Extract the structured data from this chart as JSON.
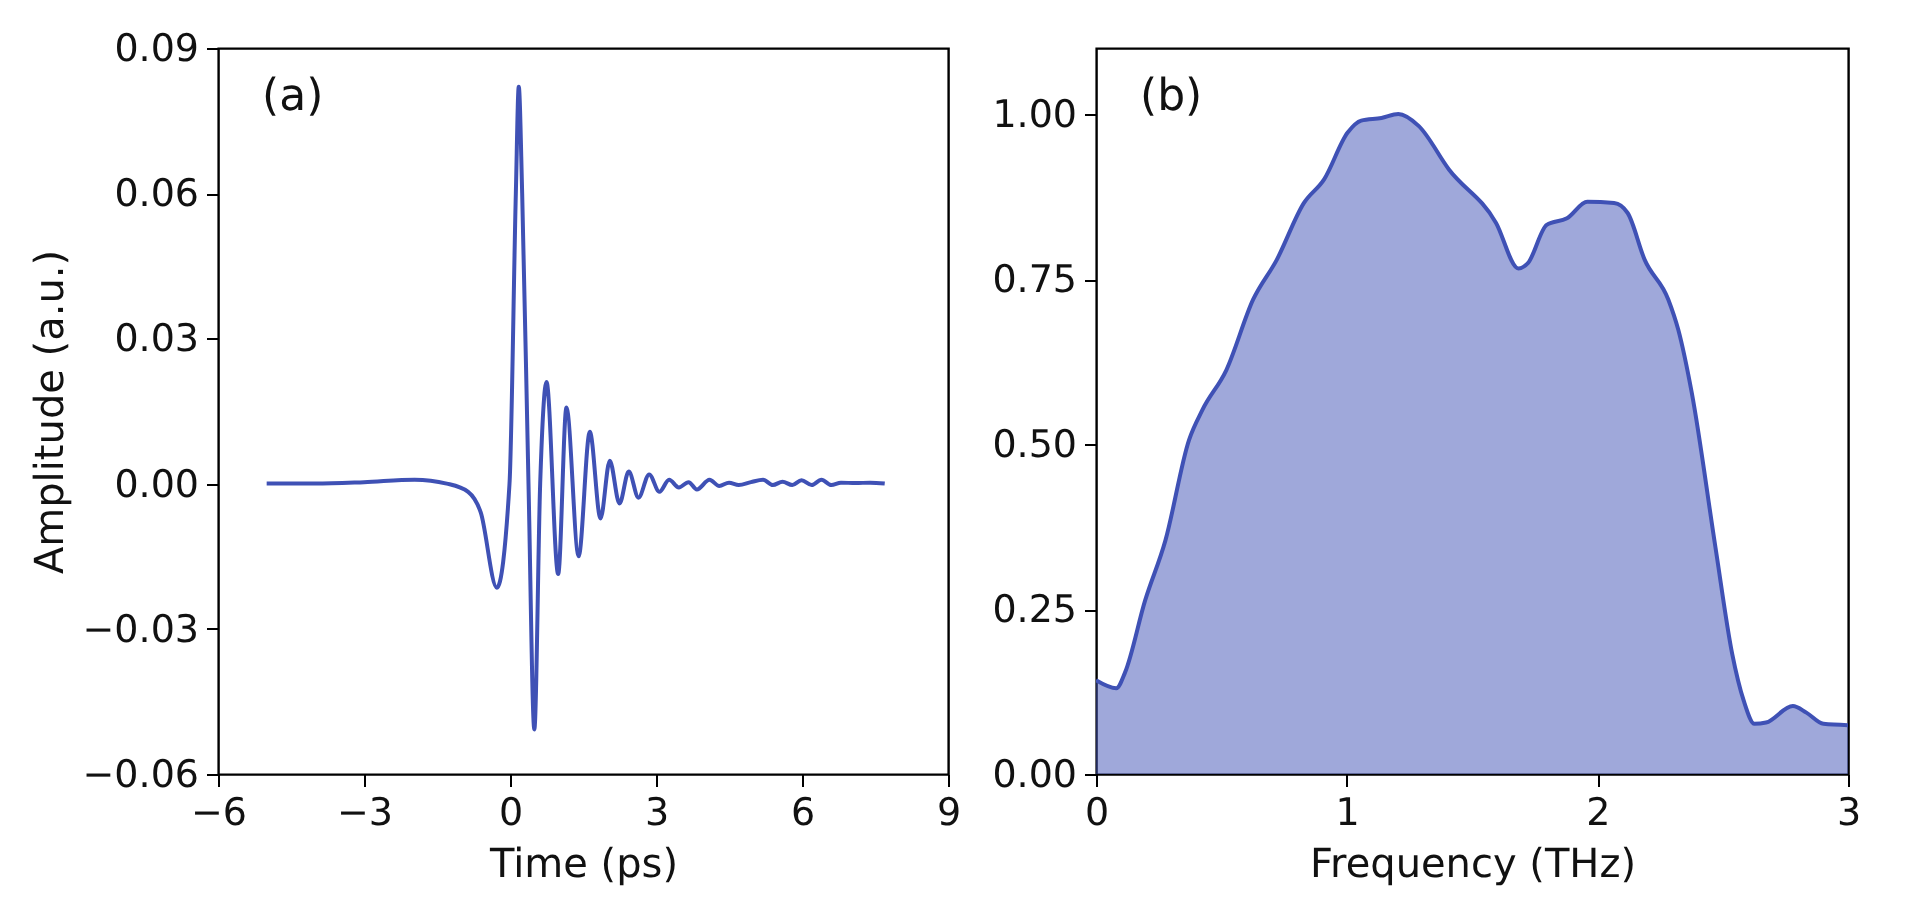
{
  "chart_data": [
    {
      "type": "line",
      "xlabel": "Time (ps)",
      "ylabel": "Amplitude (a.u.)",
      "annotations": [
        "(a)"
      ],
      "xlim": [
        -6,
        9
      ],
      "xticks": [
        {
          "value": -6,
          "label": "−6"
        },
        {
          "value": -3,
          "label": "−3"
        },
        0,
        3,
        6,
        9
      ],
      "ylim": [
        -0.06,
        0.09
      ],
      "yticks": [
        {
          "value": -0.06,
          "label": "−0.06"
        },
        {
          "value": -0.03,
          "label": "−0.03"
        },
        {
          "value": 0,
          "label": "0.00"
        },
        {
          "value": 0.03,
          "label": "0.03"
        },
        {
          "value": 0.06,
          "label": "0.06"
        },
        {
          "value": 0.09,
          "label": "0.09"
        }
      ],
      "grid": false,
      "series": [
        {
          "color": "#3f51b5",
          "x": [
            -5,
            -4,
            -3,
            -1.96,
            -1.3,
            -0.86,
            -0.6,
            -0.27,
            -0.01,
            0.12,
            0.18,
            0.25,
            0.38,
            0.5,
            0.62,
            0.75,
            0.99,
            1.16,
            1.41,
            1.64,
            1.86,
            2.05,
            2.25,
            2.44,
            2.64,
            2.86,
            3.07,
            3.27,
            3.47,
            3.67,
            3.84,
            4.1,
            4.3,
            4.5,
            4.7,
            4.95,
            5.2,
            5.4,
            5.6,
            5.8,
            5.99,
            6.2,
            6.4,
            6.6,
            6.8,
            7.1,
            7.4,
            7.7
          ],
          "values": [
            0,
            0,
            0.0003,
            0.0008,
            0,
            -0.0017,
            -0.006,
            -0.0215,
            0,
            0.06,
            0.082,
            0.06,
            0,
            -0.0508,
            0,
            0.021,
            -0.0187,
            0.0157,
            -0.015,
            0.0107,
            -0.0072,
            0.0047,
            -0.0041,
            0.0025,
            -0.0029,
            0.0019,
            -0.0017,
            0.0008,
            -0.0008,
            0.0003,
            -0.0012,
            0.0008,
            -0.0005,
            0.0002,
            -0.0003,
            0.0003,
            0.0008,
            -0.0003,
            0.0004,
            -0.0003,
            0.0007,
            -0.0003,
            0.0008,
            -0.0003,
            0.0002,
            0.0001,
            0.0002,
            0
          ]
        }
      ]
    },
    {
      "type": "area",
      "xlabel": "Frequency (THz)",
      "annotations": [
        "(b)"
      ],
      "xlim": [
        0,
        3
      ],
      "xticks": [
        0,
        1,
        2,
        3
      ],
      "ylim": [
        0,
        1.1
      ],
      "yticks": [
        {
          "value": 0,
          "label": "0.00"
        },
        {
          "value": 0.25,
          "label": "0.25"
        },
        {
          "value": 0.5,
          "label": "0.50"
        },
        {
          "value": 0.75,
          "label": "0.75"
        },
        {
          "value": 1,
          "label": "1.00"
        }
      ],
      "grid": false,
      "series": [
        {
          "color": "#3f51b5",
          "x": [
            0,
            0.081,
            0.116,
            0.196,
            0.277,
            0.371,
            0.425,
            0.52,
            0.627,
            0.721,
            0.829,
            0.91,
            1.004,
            1.058,
            1.139,
            1.206,
            1.287,
            1.408,
            1.596,
            1.685,
            1.723,
            1.798,
            1.879,
            1.96,
            2.067,
            2.121,
            2.189,
            2.283,
            2.323,
            2.377,
            2.471,
            2.538,
            2.584,
            2.627,
            2.673,
            2.78,
            2.834,
            2.902,
            3.0
          ],
          "values": [
            0.142,
            0.13,
            0.154,
            0.263,
            0.354,
            0.506,
            0.552,
            0.612,
            0.719,
            0.779,
            0.865,
            0.901,
            0.972,
            0.99,
            0.994,
            1.0,
            0.982,
            0.916,
            0.835,
            0.766,
            0.774,
            0.832,
            0.842,
            0.867,
            0.865,
            0.85,
            0.779,
            0.719,
            0.673,
            0.577,
            0.344,
            0.182,
            0.111,
            0.076,
            0.078,
            0.103,
            0.093,
            0.076,
            0.074
          ]
        }
      ]
    }
  ]
}
